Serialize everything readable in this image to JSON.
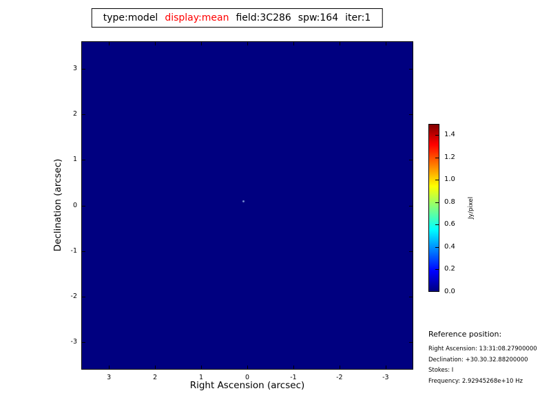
{
  "title": {
    "parts": [
      {
        "text": "type:model",
        "color": "#000000"
      },
      {
        "text": "display:mean",
        "color": "#ff0000"
      },
      {
        "text": "field:3C286",
        "color": "#000000"
      },
      {
        "text": "spw:164",
        "color": "#000000"
      },
      {
        "text": "iter:1",
        "color": "#000000"
      }
    ]
  },
  "chart_data": {
    "type": "heatmap",
    "title": "type:model display:mean field:3C286 spw:164 iter:1",
    "xlabel": "Right Ascension (arcsec)",
    "ylabel": "Declination (arcsec)",
    "x_ticks": [
      3,
      2,
      1,
      0,
      -1,
      -2,
      -3
    ],
    "y_ticks": [
      3,
      2,
      1,
      0,
      -1,
      -2,
      -3
    ],
    "x_range": [
      3.6,
      -3.6
    ],
    "y_range": [
      -3.6,
      3.6
    ],
    "grid": false,
    "background_value": 0.0,
    "background_color": "#000080",
    "points": [
      {
        "ra": 0.1,
        "dec": 0.1,
        "value": 0.35,
        "color": "#6f86c9"
      }
    ],
    "colorbar": {
      "label": "Jy/pixel",
      "min": 0.0,
      "max": 1.5,
      "ticks": [
        0.0,
        0.2,
        0.4,
        0.6,
        0.8,
        1.0,
        1.2,
        1.4
      ],
      "colormap": "jet",
      "colormap_stops": [
        "#000080",
        "#0000ff",
        "#00ffff",
        "#80ff80",
        "#ffff00",
        "#ff0000",
        "#800000"
      ]
    }
  },
  "reference": {
    "heading": "Reference position:",
    "lines": [
      "Right Ascension: 13:31:08.27900000",
      "Declination: +30.30.32.88200000",
      "Stokes: I",
      "Frequency: 2.92945268e+10 Hz"
    ]
  }
}
